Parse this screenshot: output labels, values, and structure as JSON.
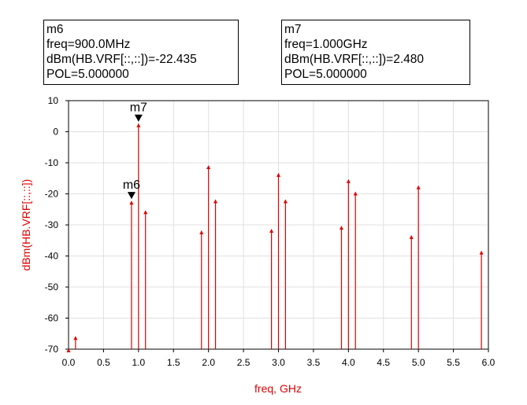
{
  "markers": [
    {
      "name": "m6",
      "freq_text": "freq=900.0MHz",
      "value_text": "dBm(HB.VRF[::,::])=-22.435",
      "pol_text": "POL=5.000000"
    },
    {
      "name": "m7",
      "freq_text": "freq=1.000GHz",
      "value_text": "dBm(HB.VRF[::,::])=2.480",
      "pol_text": "POL=5.000000"
    }
  ],
  "chart_data": {
    "type": "stem",
    "xlabel": "freq, GHz",
    "ylabel": "dBm(HB.VRF[::,::])",
    "xlim": [
      0.0,
      6.0
    ],
    "ylim": [
      -70,
      10
    ],
    "xticks": [
      "0.0",
      "0.5",
      "1.0",
      "1.5",
      "2.0",
      "2.5",
      "3.0",
      "3.5",
      "4.0",
      "4.5",
      "5.0",
      "5.5",
      "6.0"
    ],
    "yticks": [
      "10",
      "0",
      "-10",
      "-20",
      "-30",
      "-40",
      "-50",
      "-60",
      "-70"
    ],
    "series": [
      {
        "name": "dBm(HB.VRF[::,::])",
        "color": "#e00000",
        "x": [
          0.0,
          0.1,
          0.9,
          1.0,
          1.1,
          1.9,
          2.0,
          2.1,
          2.9,
          3.0,
          3.1,
          3.9,
          4.0,
          4.1,
          4.9,
          5.0,
          5.9
        ],
        "y": [
          -70,
          -66,
          -22.435,
          2.48,
          -25.5,
          -32,
          -11,
          -22,
          -31.5,
          -13.5,
          -22,
          -30.5,
          -15.5,
          -19.5,
          -33.5,
          -17.5,
          -38.5
        ]
      }
    ],
    "marker_points": [
      {
        "label": "m6",
        "x": 0.9,
        "y": -22.435
      },
      {
        "label": "m7",
        "x": 1.0,
        "y": 2.48
      }
    ]
  }
}
